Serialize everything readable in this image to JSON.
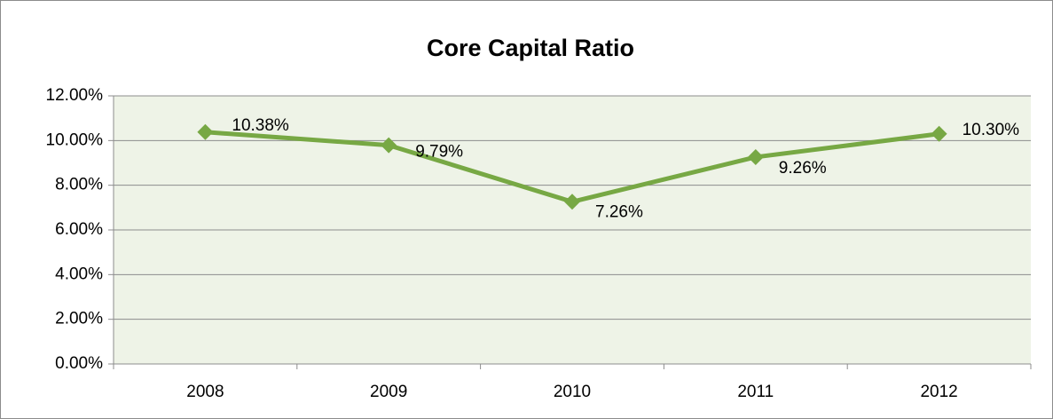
{
  "chart_data": {
    "type": "line",
    "title": "Core Capital Ratio",
    "categories": [
      "2008",
      "2009",
      "2010",
      "2011",
      "2012"
    ],
    "series": [
      {
        "name": "Core Capital Ratio",
        "color": "#77a844",
        "values": [
          10.38,
          9.79,
          7.26,
          9.26,
          10.3
        ],
        "value_labels": [
          "10.38%",
          "9.79%",
          "7.26%",
          "9.26%",
          "10.30%"
        ]
      }
    ],
    "ylim": [
      0,
      12
    ],
    "yticks": [
      {
        "value": 0,
        "label": "0.00%"
      },
      {
        "value": 2,
        "label": "2.00%"
      },
      {
        "value": 4,
        "label": "4.00%"
      },
      {
        "value": 6,
        "label": "6.00%"
      },
      {
        "value": 8,
        "label": "8.00%"
      },
      {
        "value": 10,
        "label": "10.00%"
      },
      {
        "value": 12,
        "label": "12.00%"
      }
    ],
    "grid": true,
    "plot_background": "#eef3e7"
  }
}
